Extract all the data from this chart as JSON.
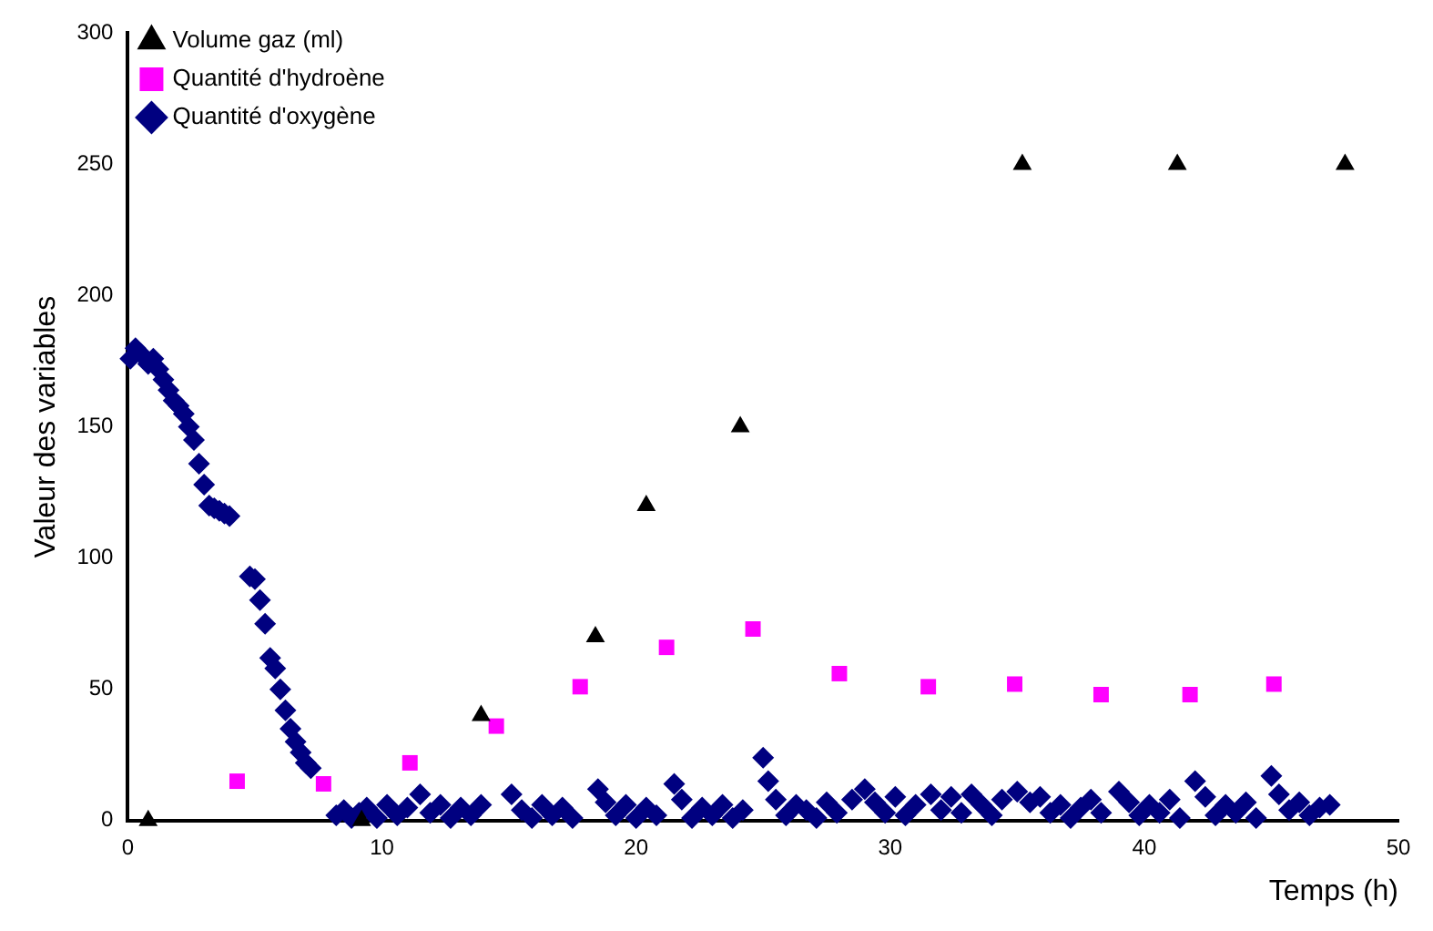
{
  "chart_data": {
    "type": "scatter",
    "xlabel": "Temps (h)",
    "ylabel": "Valeur des variables",
    "xlim": [
      0,
      50
    ],
    "xticks": [
      0,
      10,
      20,
      30,
      40,
      50
    ],
    "ylim": [
      0,
      300
    ],
    "yticks": [
      0,
      50,
      100,
      150,
      200,
      250,
      300
    ],
    "legend": "top left",
    "series": [
      {
        "name": "Quantité d'oxygène",
        "color": "#000080",
        "marker": "diamond",
        "x": [
          0.1,
          0.3,
          0.5,
          0.8,
          1.0,
          1.2,
          1.4,
          1.6,
          1.8,
          2.0,
          2.2,
          2.4,
          2.6,
          2.8,
          3.0,
          3.2,
          3.4,
          3.6,
          3.8,
          4.0,
          4.8,
          5.0,
          5.2,
          5.4,
          5.6,
          5.8,
          6.0,
          6.2,
          6.4,
          6.6,
          6.8,
          7.0,
          7.2,
          8.2,
          8.5,
          8.8,
          9.1,
          9.4,
          9.8,
          10.2,
          10.6,
          11.0,
          11.5,
          11.9,
          12.3,
          12.7,
          13.1,
          13.5,
          13.9,
          15.1,
          15.5,
          15.9,
          16.3,
          16.7,
          17.1,
          17.5,
          18.5,
          18.8,
          19.2,
          19.6,
          20.0,
          20.4,
          20.8,
          21.5,
          21.8,
          22.2,
          22.6,
          23.0,
          23.4,
          23.8,
          24.2,
          25.0,
          25.2,
          25.5,
          25.9,
          26.3,
          26.7,
          27.1,
          27.5,
          27.9,
          28.5,
          29.0,
          29.4,
          29.8,
          30.2,
          30.6,
          31.0,
          31.6,
          32.0,
          32.4,
          32.8,
          33.2,
          33.6,
          34.0,
          34.4,
          35.0,
          35.5,
          35.9,
          36.3,
          36.7,
          37.1,
          37.5,
          37.9,
          38.3,
          39.0,
          39.4,
          39.8,
          40.2,
          40.6,
          41.0,
          41.4,
          42.0,
          42.4,
          42.8,
          43.2,
          43.6,
          44.0,
          44.4,
          45.0,
          45.3,
          45.7,
          46.1,
          46.5,
          46.9,
          47.3
        ],
        "values": [
          176,
          180,
          178,
          174,
          176,
          172,
          168,
          164,
          160,
          158,
          155,
          150,
          145,
          136,
          128,
          120,
          119,
          118,
          117,
          116,
          93,
          92,
          84,
          75,
          62,
          58,
          50,
          42,
          35,
          30,
          26,
          22,
          20,
          2,
          4,
          1,
          3,
          5,
          1,
          6,
          2,
          5,
          10,
          3,
          6,
          1,
          5,
          2,
          6,
          10,
          4,
          1,
          6,
          2,
          5,
          1,
          12,
          7,
          2,
          6,
          1,
          5,
          2,
          14,
          8,
          1,
          5,
          2,
          6,
          1,
          4,
          24,
          15,
          8,
          2,
          6,
          4,
          1,
          7,
          3,
          8,
          12,
          7,
          3,
          9,
          2,
          6,
          10,
          4,
          9,
          3,
          10,
          6,
          2,
          8,
          11,
          7,
          9,
          3,
          6,
          1,
          5,
          8,
          3,
          11,
          7,
          2,
          6,
          3,
          8,
          1,
          15,
          9,
          2,
          6,
          3,
          7,
          1,
          17,
          10,
          4,
          7,
          2,
          5,
          6
        ]
      },
      {
        "name": "Quantité d'hydroène",
        "color": "#ff00ff",
        "marker": "square",
        "x": [
          4.3,
          7.7,
          11.1,
          14.5,
          17.8,
          21.2,
          24.6,
          28.0,
          31.5,
          34.9,
          38.3,
          41.8,
          45.1
        ],
        "values": [
          15,
          14,
          22,
          36,
          51,
          66,
          73,
          56,
          51,
          52,
          48,
          48,
          52
        ]
      },
      {
        "name": "Volume gaz (ml)",
        "color": "#000000",
        "marker": "triangle",
        "x": [
          0.8,
          9.2,
          13.9,
          18.4,
          20.4,
          24.1,
          35.2,
          41.3,
          47.9
        ],
        "values": [
          0,
          0,
          40,
          70,
          120,
          150,
          250,
          250,
          250
        ]
      }
    ]
  }
}
